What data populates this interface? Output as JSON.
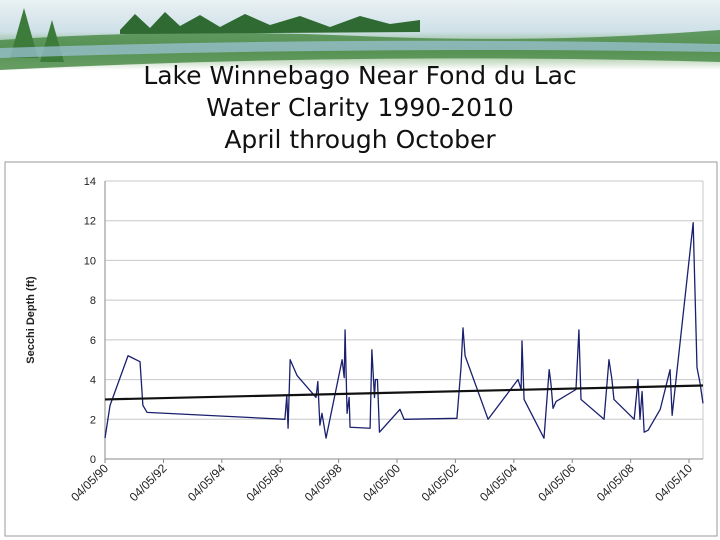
{
  "chart_data": {
    "type": "line",
    "title": [
      "Lake Winnebago Near Fond du Lac",
      "Water Clarity 1990-2010",
      "April through October"
    ],
    "y_label": "Secchi Depth (ft)",
    "xlim": [
      "1990-04-05",
      "2010-09-27"
    ],
    "xticks": [
      {
        "value": "1990-04-05",
        "label": "04/05/90"
      },
      {
        "value": "1992-04-05",
        "label": "04/05/92"
      },
      {
        "value": "1994-04-05",
        "label": "04/05/94"
      },
      {
        "value": "1996-04-05",
        "label": "04/05/96"
      },
      {
        "value": "1998-04-05",
        "label": "04/05/98"
      },
      {
        "value": "2000-04-05",
        "label": "04/05/00"
      },
      {
        "value": "2002-04-05",
        "label": "04/05/02"
      },
      {
        "value": "2004-04-05",
        "label": "04/05/04"
      },
      {
        "value": "2006-04-05",
        "label": "04/05/06"
      },
      {
        "value": "2008-04-05",
        "label": "04/05/08"
      },
      {
        "value": "2010-04-05",
        "label": "04/05/10"
      }
    ],
    "ylim": [
      0,
      14
    ],
    "yticks": [
      0,
      2,
      4,
      6,
      8,
      10,
      12,
      14
    ],
    "grid": true,
    "series": [
      {
        "color": "#1a1f6e",
        "x": [
          "1990-04-05",
          "1990-06-07",
          "1991-01-18",
          "1991-06-17",
          "1991-07-23",
          "1991-09-13",
          "1996-06-02",
          "1996-06-26",
          "1996-07-12",
          "1996-08-07",
          "1996-11-02",
          "1997-06-27",
          "1997-07-19",
          "1997-08-14",
          "1997-09-09",
          "1997-10-30",
          "1998-05-19",
          "1998-06-14",
          "1998-06-25",
          "1998-07-20",
          "1998-08-15",
          "1998-08-26",
          "1999-05-04",
          "1999-05-26",
          "1999-06-28",
          "1999-07-09",
          "1999-08-04",
          "1999-08-29",
          "2000-05-12",
          "2000-07-02",
          "2002-04-24",
          "2002-06-14",
          "2002-07-09",
          "2002-08-04",
          "2003-05-19",
          "2004-05-27",
          "2004-07-05",
          "2004-07-16",
          "2004-08-11",
          "2005-04-17",
          "2005-06-21",
          "2005-07-13",
          "2005-08-08",
          "2005-09-16",
          "2006-05-22",
          "2006-06-28",
          "2006-07-24",
          "2007-05-08",
          "2007-07-09",
          "2007-08-15",
          "2007-09-09",
          "2008-05-19",
          "2008-07-06",
          "2008-07-31",
          "2008-08-26",
          "2008-09-21",
          "2008-11-10",
          "2009-04-10",
          "2009-08-11",
          "2009-09-06",
          "2010-05-27",
          "2010-07-14",
          "2010-08-22",
          "2010-09-27"
        ],
        "values": [
          1.05,
          2.7,
          5.2,
          4.9,
          2.7,
          2.35,
          2.0,
          3.2,
          1.55,
          5.0,
          4.2,
          3.1,
          3.9,
          1.7,
          2.3,
          1.05,
          5.0,
          4.1,
          6.5,
          2.3,
          3.1,
          1.6,
          1.55,
          5.5,
          3.1,
          4.0,
          4.0,
          1.35,
          2.5,
          2.0,
          2.05,
          4.6,
          6.6,
          5.2,
          2.0,
          4.0,
          3.5,
          5.95,
          3.0,
          1.05,
          4.5,
          3.8,
          2.55,
          2.9,
          3.5,
          6.5,
          3.0,
          2.0,
          5.0,
          4.0,
          3.0,
          2.0,
          4.0,
          2.0,
          3.4,
          1.35,
          1.45,
          2.5,
          4.5,
          2.2,
          11.9,
          4.6,
          3.8,
          2.8
        ]
      },
      {
        "color": "#111111",
        "x": [
          "1990-04-05",
          "2010-09-27"
        ],
        "values": [
          3.0,
          3.7
        ]
      }
    ]
  }
}
